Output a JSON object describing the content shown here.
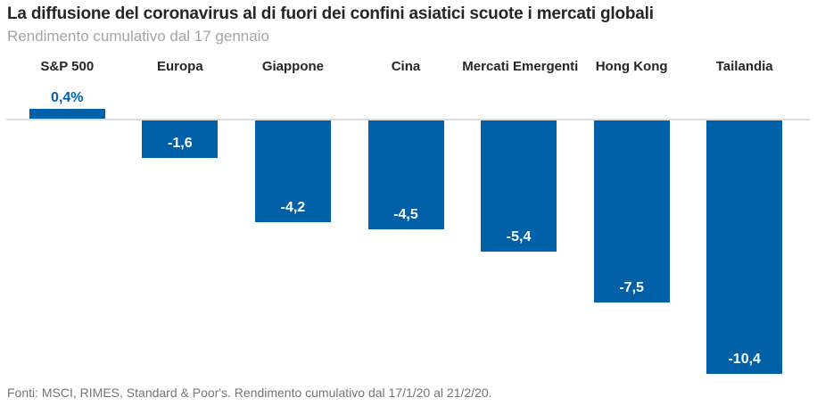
{
  "chart_data": {
    "type": "bar",
    "title": "La diffusione del coronavirus al di fuori dei confini asiatici scuote i mercati globali",
    "subtitle": "Rendimento cumulativo dal 17 gennaio",
    "categories": [
      "S&P 500",
      "Europa",
      "Giappone",
      "Cina",
      "Mercati Emergenti",
      "Hong Kong",
      "Tailandia"
    ],
    "values": [
      0.4,
      -1.6,
      -4.2,
      -4.5,
      -5.4,
      -7.5,
      -10.4
    ],
    "value_labels": [
      "0,4%",
      "-1,6",
      "-4,2",
      "-4,5",
      "-5,4",
      "-7,5",
      "-10,4"
    ],
    "unit": "%",
    "ylim": [
      -11,
      1
    ],
    "grid": false,
    "legend": "none",
    "bar_color": "#0061a8",
    "positive_label_color": "#0061a8",
    "negative_label_color": "#ffffff",
    "zero_line_color": "#dcdcdc",
    "source": "Fonti: MSCI, RIMES, Standard & Poor's. Rendimento cumulativo dal 17/1/20 al 21/2/20."
  }
}
